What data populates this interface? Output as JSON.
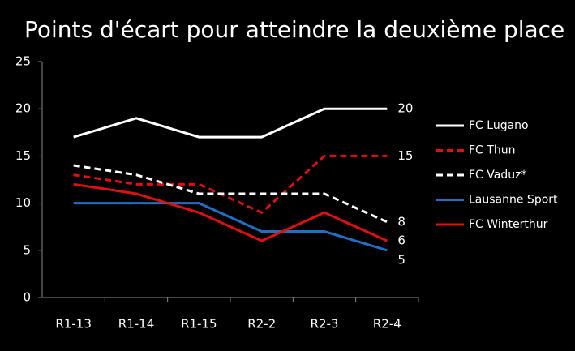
{
  "chart_data": {
    "type": "line",
    "title": "Points d'écart pour atteindre la deuxième place",
    "categories": [
      "R1-13",
      "R1-14",
      "R1-15",
      "R2-2",
      "R2-3",
      "R2-4"
    ],
    "series": [
      {
        "name": "FC Lugano",
        "color": "#ffffff",
        "dashed": false,
        "values": [
          17,
          19,
          17,
          17,
          20,
          20
        ]
      },
      {
        "name": "FC Thun",
        "color": "#e01010",
        "dashed": true,
        "values": [
          13,
          12,
          12,
          9,
          15,
          15
        ]
      },
      {
        "name": "FC Vaduz*",
        "color": "#ffffff",
        "dashed": true,
        "values": [
          14,
          13,
          11,
          11,
          11,
          8
        ]
      },
      {
        "name": "Lausanne Sport",
        "color": "#1f6fc4",
        "dashed": false,
        "values": [
          10,
          10,
          10,
          7,
          7,
          5
        ]
      },
      {
        "name": "FC Winterthur",
        "color": "#e01010",
        "dashed": false,
        "values": [
          12,
          11,
          9,
          6,
          9,
          6
        ]
      }
    ],
    "ylim": [
      0,
      25
    ],
    "yticks": [
      0,
      5,
      10,
      15,
      20,
      25
    ],
    "grid": false,
    "legend": "right"
  }
}
